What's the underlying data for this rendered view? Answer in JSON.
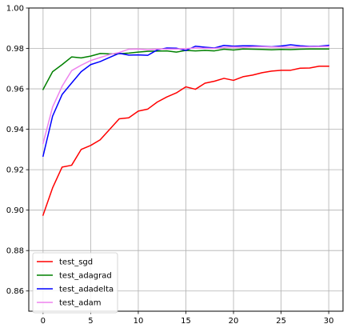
{
  "chart_data": {
    "type": "line",
    "title": "",
    "xlabel": "",
    "ylabel": "",
    "xlim": [
      -1.5,
      31.5
    ],
    "ylim": [
      0.85,
      1.0
    ],
    "xticks": [
      0,
      5,
      10,
      15,
      20,
      25,
      30
    ],
    "yticks": [
      0.86,
      0.88,
      0.9,
      0.92,
      0.94,
      0.96,
      0.98,
      1.0
    ],
    "xtick_labels": [
      "0",
      "5",
      "10",
      "15",
      "20",
      "25",
      "30"
    ],
    "ytick_labels": [
      "0.86",
      "0.88",
      "0.90",
      "0.92",
      "0.94",
      "0.96",
      "0.98",
      "1.00"
    ],
    "grid": true,
    "legend_position": "lower-left",
    "x": [
      0,
      1,
      2,
      3,
      4,
      5,
      6,
      7,
      8,
      9,
      10,
      11,
      12,
      13,
      14,
      15,
      16,
      17,
      18,
      19,
      20,
      21,
      22,
      23,
      24,
      25,
      26,
      27,
      28,
      29,
      30
    ],
    "series": [
      {
        "name": "test_sgd",
        "color": "#ff0000",
        "values": [
          0.8975,
          0.911,
          0.9213,
          0.9222,
          0.93,
          0.932,
          0.9348,
          0.94,
          0.9452,
          0.9457,
          0.949,
          0.95,
          0.9535,
          0.956,
          0.958,
          0.961,
          0.9598,
          0.9628,
          0.9638,
          0.9652,
          0.9642,
          0.966,
          0.9668,
          0.968,
          0.9688,
          0.9692,
          0.9692,
          0.9702,
          0.9703,
          0.9712,
          0.9712
        ]
      },
      {
        "name": "test_adagrad",
        "color": "#008000",
        "values": [
          0.9597,
          0.9685,
          0.972,
          0.9758,
          0.9753,
          0.9762,
          0.9775,
          0.9773,
          0.9774,
          0.9777,
          0.9782,
          0.9786,
          0.9787,
          0.9788,
          0.9782,
          0.979,
          0.9788,
          0.979,
          0.9788,
          0.9796,
          0.9792,
          0.9797,
          0.9796,
          0.9795,
          0.9793,
          0.9795,
          0.9794,
          0.9796,
          0.9797,
          0.9797,
          0.9797
        ]
      },
      {
        "name": "test_adadelta",
        "color": "#0000ff",
        "values": [
          0.9267,
          0.9465,
          0.9572,
          0.9629,
          0.9685,
          0.972,
          0.9735,
          0.9756,
          0.9776,
          0.9767,
          0.9768,
          0.9766,
          0.9793,
          0.9802,
          0.9801,
          0.979,
          0.9811,
          0.9806,
          0.9802,
          0.9815,
          0.9811,
          0.9813,
          0.9813,
          0.9811,
          0.9808,
          0.9812,
          0.9818,
          0.9813,
          0.981,
          0.9811,
          0.9815
        ]
      },
      {
        "name": "test_adam",
        "color": "#ee82ee",
        "values": [
          0.933,
          0.951,
          0.9613,
          0.969,
          0.9717,
          0.974,
          0.9755,
          0.977,
          0.978,
          0.9796,
          0.9797,
          0.9793,
          0.9797,
          0.9797,
          0.9797,
          0.9799,
          0.9802,
          0.9801,
          0.98,
          0.9805,
          0.9807,
          0.9805,
          0.9808,
          0.9809,
          0.9807,
          0.9807,
          0.9806,
          0.9808,
          0.9808,
          0.9809,
          0.981
        ]
      }
    ]
  }
}
